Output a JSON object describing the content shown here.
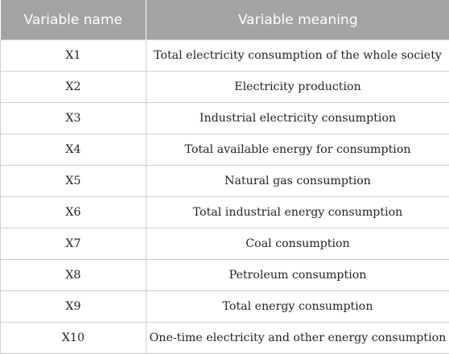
{
  "table": {
    "headers": [
      "Variable name",
      "Variable meaning"
    ],
    "rows": [
      [
        "X1",
        "Total electricity consumption of the whole society"
      ],
      [
        "X2",
        "Electricity production"
      ],
      [
        "X3",
        "Industrial electricity consumption"
      ],
      [
        "X4",
        "Total available energy for consumption"
      ],
      [
        "X5",
        "Natural gas consumption"
      ],
      [
        "X6",
        "Total industrial energy consumption"
      ],
      [
        "X7",
        "Coal consumption"
      ],
      [
        "X8",
        "Petroleum consumption"
      ],
      [
        "X9",
        "Total energy consumption"
      ],
      [
        "X10",
        "One-time electricity and other energy consumption"
      ]
    ]
  },
  "colors": {
    "header_bg": "#a3a3a3",
    "header_text": "#ffffff",
    "grid": "#cfcfcf"
  }
}
